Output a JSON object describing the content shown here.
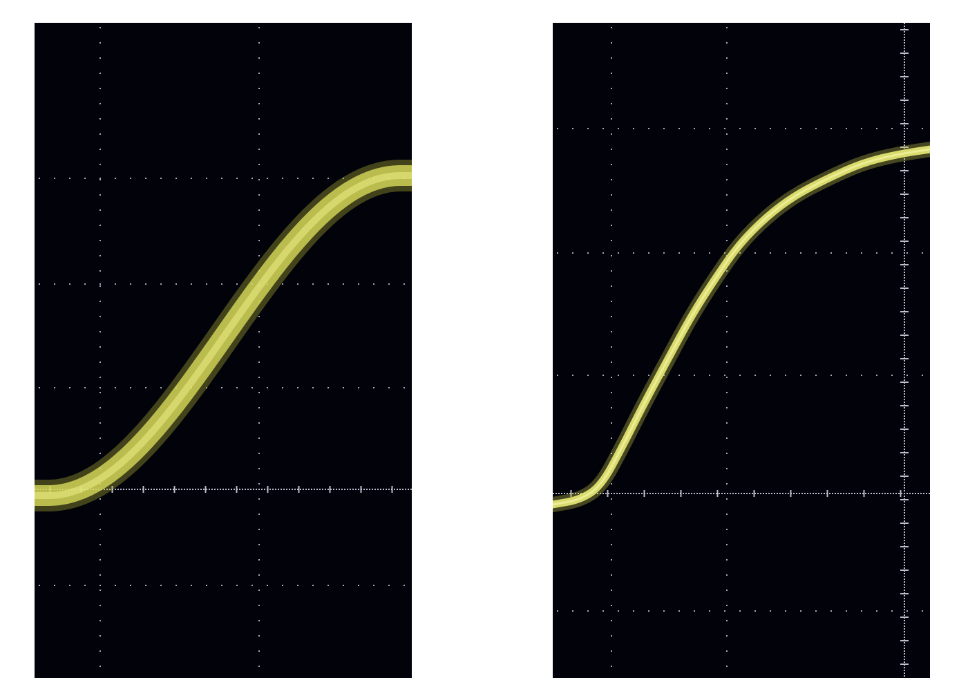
{
  "screens": [
    {
      "id": "left",
      "trace_color": "#d8dc5a",
      "trace_glow_color": "#b9bd3c",
      "grid_color": "#c8c8d8",
      "background_color": "#02030a",
      "trace_style": "wide-noisy-band"
    },
    {
      "id": "right",
      "trace_color": "#e2e472",
      "trace_glow_color": "#c6c94a",
      "grid_color": "#c8c8d8",
      "background_color": "#02030a",
      "trace_style": "thin-sharp-line"
    }
  ]
}
